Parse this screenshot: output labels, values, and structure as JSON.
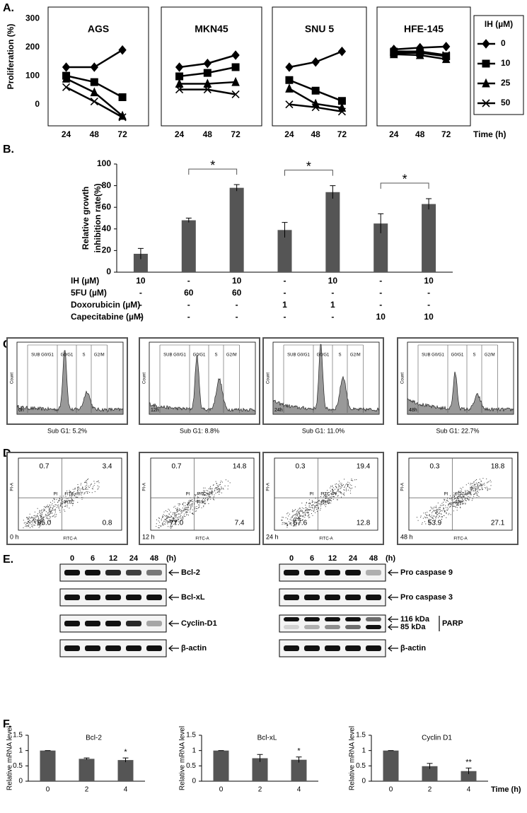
{
  "panel_labels": [
    "A.",
    "B.",
    "C.",
    "D.",
    "E.",
    "F."
  ],
  "chart_data": [
    {
      "type": "line",
      "title": "AGS",
      "categories": [
        "24",
        "48",
        "72"
      ],
      "ylim": [
        -75,
        340
      ],
      "yticks": [
        0,
        100,
        200,
        300
      ],
      "ylabel": "Proliferation (%)",
      "legend_title": "IH (µM)",
      "series": [
        {
          "name": "0",
          "marker": "diamond",
          "color": "#000000",
          "values": [
            130,
            130,
            190
          ]
        },
        {
          "name": "10",
          "marker": "square",
          "color": "#000000",
          "values": [
            100,
            78,
            25
          ]
        },
        {
          "name": "25",
          "marker": "triangle",
          "color": "#000000",
          "values": [
            90,
            42,
            -40
          ]
        },
        {
          "name": "50",
          "marker": "cross",
          "color": "#000000",
          "values": [
            60,
            10,
            -45
          ]
        }
      ]
    },
    {
      "type": "line",
      "title": "MKN45",
      "categories": [
        "24",
        "48",
        "72"
      ],
      "ylim": [
        -75,
        340
      ],
      "series": [
        {
          "values": [
            130,
            143,
            172
          ]
        },
        {
          "values": [
            98,
            110,
            130
          ]
        },
        {
          "values": [
            72,
            72,
            78
          ]
        },
        {
          "values": [
            52,
            52,
            35
          ]
        }
      ]
    },
    {
      "type": "line",
      "title": "SNU 5",
      "categories": [
        "24",
        "48",
        "72"
      ],
      "ylim": [
        -75,
        340
      ],
      "series": [
        {
          "values": [
            130,
            148,
            185
          ]
        },
        {
          "values": [
            85,
            48,
            12
          ]
        },
        {
          "values": [
            55,
            2,
            -12
          ]
        },
        {
          "values": [
            0,
            -10,
            -25
          ]
        }
      ]
    },
    {
      "type": "line",
      "title": "HFE-145",
      "categories": [
        "24",
        "48",
        "72"
      ],
      "ylim": [
        -75,
        340
      ],
      "xlabel": "Time (h)",
      "series": [
        {
          "values": [
            192,
            198,
            202
          ]
        },
        {
          "values": [
            180,
            180,
            168
          ]
        },
        {
          "values": [
            175,
            172,
            158
          ]
        },
        {
          "values": [
            185,
            185,
            172
          ]
        }
      ]
    },
    {
      "type": "bar",
      "values": [
        17,
        48,
        78,
        39,
        74,
        45,
        63
      ],
      "errors": [
        5,
        2,
        3,
        7,
        6,
        9,
        5
      ],
      "color": "#555555",
      "ylim": [
        0,
        100
      ],
      "yticks": [
        0,
        20,
        40,
        60,
        80,
        100
      ],
      "ylabel": [
        "Relative growth",
        "inhibition rate(%)"
      ],
      "pairs": [
        [
          1,
          2
        ],
        [
          3,
          4
        ],
        [
          5,
          6
        ]
      ],
      "pair_labels": [
        "*",
        "*",
        "*"
      ],
      "treatments": [
        {
          "name": "IH (µM)",
          "values": [
            "10",
            "-",
            "10",
            "-",
            "10",
            "-",
            "10"
          ]
        },
        {
          "name": "5FU (µM)",
          "values": [
            "-",
            "60",
            "60",
            "-",
            "-",
            "-",
            "-"
          ]
        },
        {
          "name": "Doxorubicin (µM)",
          "values": [
            "-",
            "-",
            "-",
            "1",
            "1",
            "-",
            "-"
          ]
        },
        {
          "name": "Capecitabine (µM)",
          "values": [
            "-",
            "-",
            "-",
            "-",
            "-",
            "10",
            "10"
          ]
        }
      ]
    },
    {
      "type": "bar",
      "title": "Bcl-2",
      "categories": [
        "0",
        "2",
        "4"
      ],
      "values": [
        1,
        0.73,
        0.69
      ],
      "errors": [
        0,
        0.03,
        0.07
      ],
      "color": "#555555",
      "ylim": [
        0,
        1.5
      ],
      "yticks": [
        0,
        0.5,
        1,
        1.5
      ],
      "ylabel": "Relative mRNA level",
      "annotations": [
        {
          "index": 2,
          "label": "*"
        }
      ]
    },
    {
      "type": "bar",
      "title": "Bcl-xL",
      "categories": [
        "0",
        "2",
        "4"
      ],
      "values": [
        1,
        0.75,
        0.7
      ],
      "errors": [
        0,
        0.12,
        0.09
      ],
      "color": "#555555",
      "ylim": [
        0,
        1.5
      ],
      "yticks": [
        0,
        0.5,
        1,
        1.5
      ],
      "ylabel": "Relative mRNA level",
      "annotations": [
        {
          "index": 2,
          "label": "*"
        }
      ]
    },
    {
      "type": "bar",
      "title": "Cyclin D1",
      "categories": [
        "0",
        "2",
        "4"
      ],
      "values": [
        1,
        0.49,
        0.33
      ],
      "errors": [
        0,
        0.09,
        0.1
      ],
      "color": "#555555",
      "ylim": [
        0,
        1.5
      ],
      "yticks": [
        0,
        0.5,
        1,
        1.5
      ],
      "ylabel": "Relative mRNA level",
      "annotations": [
        {
          "index": 2,
          "label": "**"
        }
      ],
      "xlabel": "Time (h)"
    }
  ],
  "cell_cycle": {
    "gates": [
      "SUB G0/G1",
      "G0/G1",
      "S",
      "G2/M"
    ],
    "y_label": "Count",
    "plots": [
      {
        "time": "0h",
        "caption": "Sub G1: 5.2%"
      },
      {
        "time": "12h",
        "caption": "Sub G1: 8.8%"
      },
      {
        "time": "24h",
        "caption": "Sub G1: 11.0%"
      },
      {
        "time": "48h",
        "caption": "Sub G1: 22.7%"
      }
    ]
  },
  "apoptosis": {
    "quadrant_labels": [
      "PI",
      "FITC+PI",
      "FITC"
    ],
    "x_label": "FITC-A",
    "y_label": "PI-A",
    "plots": [
      {
        "time": "0 h",
        "quadrants": [
          "0.7",
          "3.4",
          "95.0",
          "0.8"
        ]
      },
      {
        "time": "12 h",
        "quadrants": [
          "0.7",
          "14.8",
          "77.0",
          "7.4"
        ]
      },
      {
        "time": "24 h",
        "quadrants": [
          "0.3",
          "19.4",
          "67.6",
          "12.8"
        ]
      },
      {
        "time": "48 h",
        "quadrants": [
          "0.3",
          "18.8",
          "53.9",
          "27.1"
        ]
      }
    ]
  },
  "blots": {
    "lanes": [
      "0",
      "6",
      "12",
      "24",
      "48"
    ],
    "unit": "(h)",
    "left": [
      {
        "label": "Bcl-2"
      },
      {
        "label": "Bcl-xL"
      },
      {
        "label": "Cyclin-D1"
      },
      {
        "label": "β-actin"
      }
    ],
    "right": [
      {
        "label": "Pro caspase 9"
      },
      {
        "label": "Pro caspase 3"
      },
      {
        "label": "PARP",
        "bands": [
          "116 kDa",
          "85 kDa"
        ]
      },
      {
        "label": "β-actin"
      }
    ]
  }
}
